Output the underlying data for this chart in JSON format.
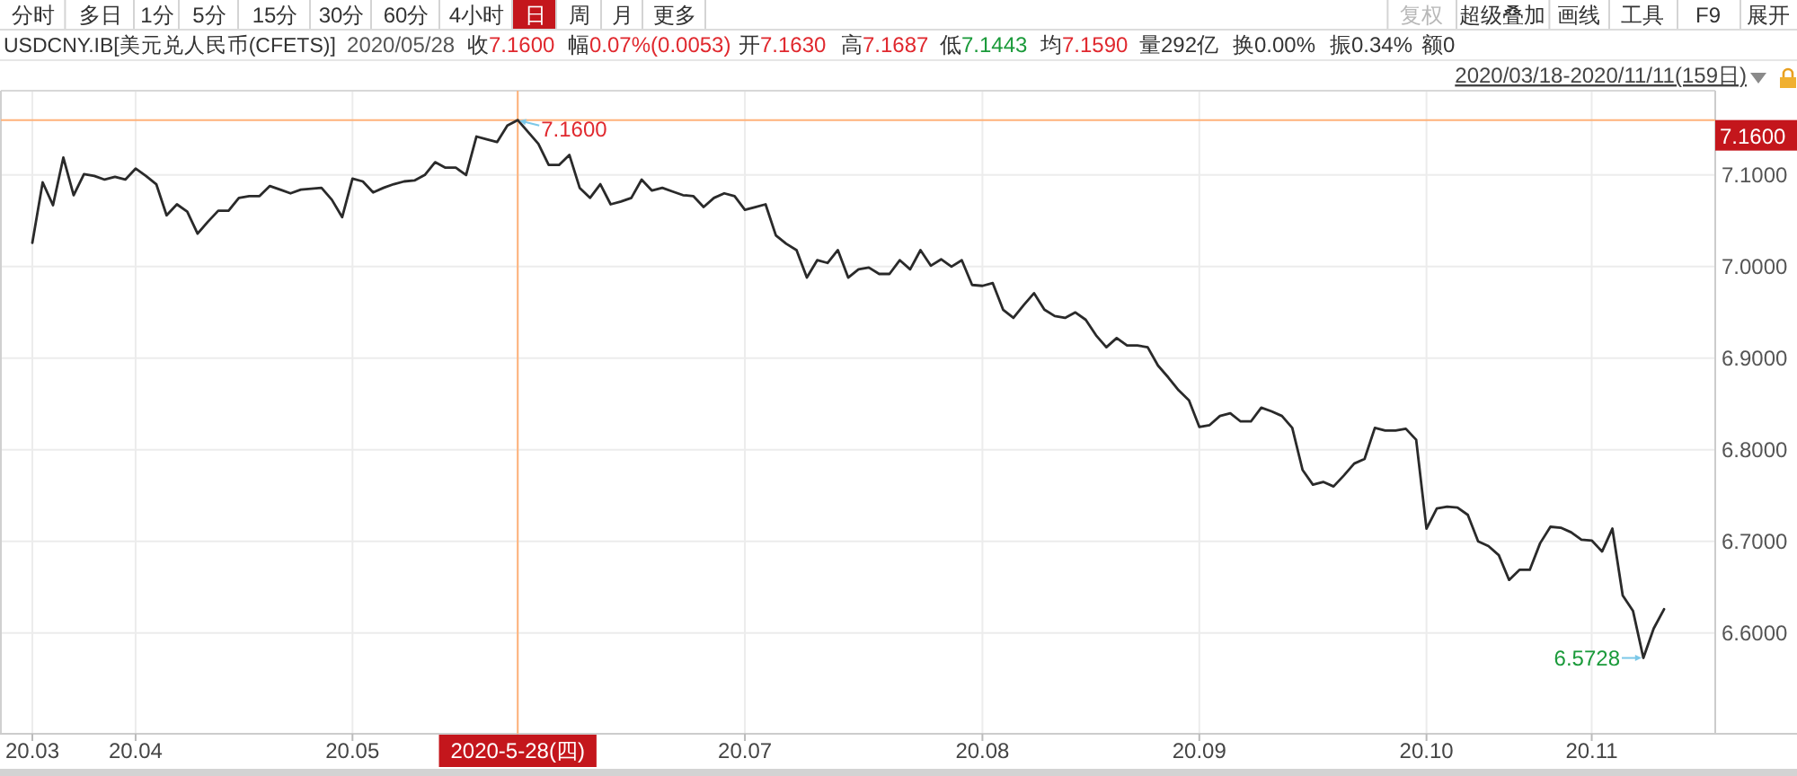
{
  "chart_data": {
    "type": "line",
    "title": "USDCNY.IB[美元兑人民币(CFETS)]",
    "subtitle": "2020/03/18-2020/11/11(159日)",
    "categories": [
      "20.03",
      null,
      null,
      null,
      null,
      null,
      null,
      null,
      null,
      null,
      "20.04",
      null,
      null,
      null,
      null,
      null,
      null,
      null,
      null,
      null,
      null,
      null,
      null,
      null,
      null,
      null,
      null,
      null,
      null,
      null,
      null,
      "20.05",
      null,
      null,
      null,
      null,
      null,
      null,
      null,
      null,
      null,
      null,
      null,
      null,
      null,
      null,
      null,
      "2020-5-28(四)",
      null,
      null,
      null,
      null,
      null,
      null,
      null,
      null,
      null,
      null,
      null,
      null,
      null,
      null,
      null,
      null,
      null,
      null,
      null,
      null,
      null,
      "20.07",
      null,
      null,
      null,
      null,
      null,
      null,
      null,
      null,
      null,
      null,
      null,
      null,
      null,
      null,
      null,
      null,
      null,
      null,
      null,
      null,
      null,
      null,
      "20.08",
      null,
      null,
      null,
      null,
      null,
      null,
      null,
      null,
      null,
      null,
      null,
      null,
      null,
      null,
      null,
      null,
      null,
      null,
      null,
      null,
      "20.09",
      null,
      null,
      null,
      null,
      null,
      null,
      null,
      null,
      null,
      null,
      null,
      null,
      null,
      null,
      null,
      null,
      null,
      null,
      null,
      null,
      null,
      "20.10",
      null,
      null,
      null,
      null,
      null,
      null,
      null,
      null,
      null,
      null,
      null,
      null,
      null,
      null,
      null,
      "20.11",
      null,
      null,
      null,
      null,
      null,
      null,
      null
    ],
    "series": [
      {
        "color": "#2a2a2a",
        "values": [
          7.026,
          7.092,
          7.067,
          7.119,
          7.078,
          7.101,
          7.099,
          7.095,
          7.098,
          7.095,
          7.107,
          7.099,
          7.09,
          7.056,
          7.068,
          7.06,
          7.036,
          7.049,
          7.061,
          7.061,
          7.075,
          7.077,
          7.077,
          7.088,
          7.084,
          7.08,
          7.084,
          7.085,
          7.086,
          7.073,
          7.054,
          7.096,
          7.093,
          7.081,
          7.086,
          7.09,
          7.093,
          7.094,
          7.1,
          7.114,
          7.108,
          7.108,
          7.1,
          7.142,
          7.139,
          7.136,
          7.154,
          7.16,
          7.147,
          7.134,
          7.111,
          7.111,
          7.122,
          7.086,
          7.075,
          7.09,
          7.068,
          7.071,
          7.075,
          7.095,
          7.083,
          7.086,
          7.082,
          7.078,
          7.077,
          7.065,
          7.075,
          7.08,
          7.077,
          7.062,
          7.065,
          7.068,
          7.034,
          7.025,
          7.018,
          6.988,
          7.007,
          7.004,
          7.018,
          6.988,
          6.997,
          6.999,
          6.992,
          6.992,
          7.007,
          6.997,
          7.018,
          7.001,
          7.008,
          7.0,
          7.007,
          6.98,
          6.979,
          6.982,
          6.953,
          6.944,
          6.958,
          6.971,
          6.953,
          6.946,
          6.944,
          6.95,
          6.942,
          6.925,
          6.912,
          6.922,
          6.914,
          6.914,
          6.912,
          6.892,
          6.879,
          6.865,
          6.854,
          6.825,
          6.827,
          6.837,
          6.84,
          6.831,
          6.831,
          6.846,
          6.842,
          6.837,
          6.824,
          6.778,
          6.762,
          6.765,
          6.76,
          6.772,
          6.785,
          6.79,
          6.824,
          6.821,
          6.821,
          6.823,
          6.811,
          6.714,
          6.736,
          6.738,
          6.737,
          6.729,
          6.7,
          6.695,
          6.685,
          6.658,
          6.669,
          6.669,
          6.698,
          6.716,
          6.715,
          6.71,
          6.702,
          6.701,
          6.689,
          6.714,
          6.641,
          6.624,
          6.5728,
          6.605,
          6.626
        ]
      }
    ],
    "ylim": [
      6.491,
      7.193
    ],
    "yticks": [
      {
        "value": 6.6,
        "label": "6.6000"
      },
      {
        "value": 6.7,
        "label": "6.7000"
      },
      {
        "value": 6.8,
        "label": "6.8000"
      },
      {
        "value": 6.9,
        "label": "6.9000"
      },
      {
        "value": 7.0,
        "label": "7.0000"
      },
      {
        "value": 7.1,
        "label": "7.1000"
      }
    ],
    "grid": true,
    "ref_lines": [
      {
        "axis": "x",
        "value": "2020-5-28(四)",
        "color": "#ffb27a"
      },
      {
        "axis": "y",
        "value": 7.16,
        "label": "7.1600",
        "color": "#ffb27a"
      }
    ],
    "annotations": [
      "分时",
      "多日",
      "1分",
      "5分",
      "15分",
      "30分",
      "60分",
      "4小时",
      "日",
      "周",
      "月",
      "更多",
      "复权",
      "超级叠加",
      "画线",
      "工具",
      "F9",
      "展开",
      "2020/05/28",
      "收7.1600",
      "幅0.07%(0.0053)",
      "开7.1630",
      "高7.1687",
      "低7.1443",
      "均7.1590",
      "量292亿",
      "换0.00%",
      "振0.34%",
      "额0",
      "6.5728",
      {
        "text": "7.1600",
        "y": 7.16
      }
    ]
  }
}
